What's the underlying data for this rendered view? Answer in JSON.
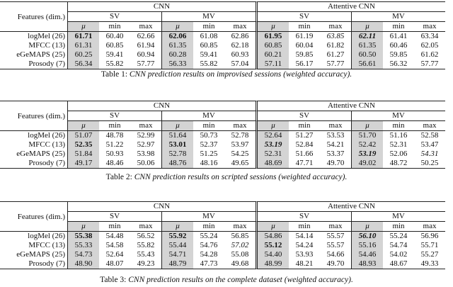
{
  "header": {
    "features_label": "Features (dim.)",
    "cnn": "CNN",
    "attentive_cnn": "Attentive CNN",
    "sv": "SV",
    "mv": "MV",
    "mu": "μ",
    "min": "min",
    "max": "max"
  },
  "tables": [
    {
      "caption_prefix": "Table 1:",
      "caption_text": "CNN prediction results on improvised sessions (weighted accuracy).",
      "rows": [
        {
          "feature": "logMel (26)",
          "values": [
            "61.71",
            "60.40",
            "62.66",
            "62.06",
            "61.08",
            "62.86",
            "61.95",
            "61.19",
            "63.85",
            "62.11",
            "61.41",
            "63.34"
          ]
        },
        {
          "feature": "MFCC (13)",
          "values": [
            "61.31",
            "60.85",
            "61.94",
            "61.35",
            "60.85",
            "62.18",
            "60.85",
            "60.04",
            "61.82",
            "61.35",
            "60.46",
            "62.05"
          ]
        },
        {
          "feature": "eGeMAPS (25)",
          "values": [
            "60.25",
            "59.41",
            "60.94",
            "60.28",
            "59.41",
            "60.93",
            "60.21",
            "59.85",
            "61.27",
            "60.50",
            "59.85",
            "61.62"
          ]
        },
        {
          "feature": "Prosody (7)",
          "values": [
            "56.34",
            "55.82",
            "57.77",
            "56.33",
            "55.82",
            "57.04",
            "57.11",
            "56.17",
            "57.77",
            "56.61",
            "56.32",
            "57.77"
          ]
        }
      ]
    },
    {
      "caption_prefix": "Table 2:",
      "caption_text": "CNN prediction results on scripted sessions (weighted accuracy).",
      "rows": [
        {
          "feature": "logMel (26)",
          "values": [
            "51.07",
            "48.78",
            "52.99",
            "51.64",
            "50.73",
            "52.78",
            "52.64",
            "51.27",
            "53.53",
            "51.70",
            "51.16",
            "52.58"
          ]
        },
        {
          "feature": "MFCC (13)",
          "values": [
            "52.35",
            "51.22",
            "52.97",
            "53.01",
            "52.37",
            "53.97",
            "53.19",
            "52.84",
            "54.21",
            "52.42",
            "52.31",
            "53.47"
          ]
        },
        {
          "feature": "eGeMAPS (25)",
          "values": [
            "51.84",
            "50.93",
            "53.98",
            "52.78",
            "51.25",
            "54.25",
            "52.31",
            "51.66",
            "53.37",
            "53.19",
            "52.06",
            "54.31"
          ]
        },
        {
          "feature": "Prosody (7)",
          "values": [
            "49.17",
            "48.46",
            "50.06",
            "48.76",
            "48.16",
            "49.65",
            "48.69",
            "47.71",
            "49.70",
            "49.02",
            "48.72",
            "50.25"
          ]
        }
      ]
    },
    {
      "caption_prefix": "Table 3:",
      "caption_text": "CNN prediction results on the complete dataset (weighted accuracy).",
      "rows": [
        {
          "feature": "logMel (26)",
          "values": [
            "55.38",
            "54.48",
            "56.52",
            "55.92",
            "55.24",
            "56.85",
            "54.86",
            "54.14",
            "55.57",
            "56.10",
            "55.24",
            "56.96"
          ]
        },
        {
          "feature": "MFCC (13)",
          "values": [
            "55.33",
            "54.58",
            "55.82",
            "55.44",
            "54.76",
            "57.02",
            "55.12",
            "54.24",
            "55.57",
            "55.16",
            "54.74",
            "55.71"
          ]
        },
        {
          "feature": "eGeMAPS (25)",
          "values": [
            "54.73",
            "52.64",
            "55.43",
            "54.71",
            "54.28",
            "55.08",
            "54.40",
            "53.93",
            "54.66",
            "54.46",
            "54.02",
            "55.27"
          ]
        },
        {
          "feature": "Prosody (7)",
          "values": [
            "48.90",
            "48.07",
            "49.23",
            "48.79",
            "47.73",
            "49.68",
            "48.99",
            "48.21",
            "49.70",
            "48.93",
            "48.67",
            "49.33"
          ]
        }
      ]
    }
  ]
}
